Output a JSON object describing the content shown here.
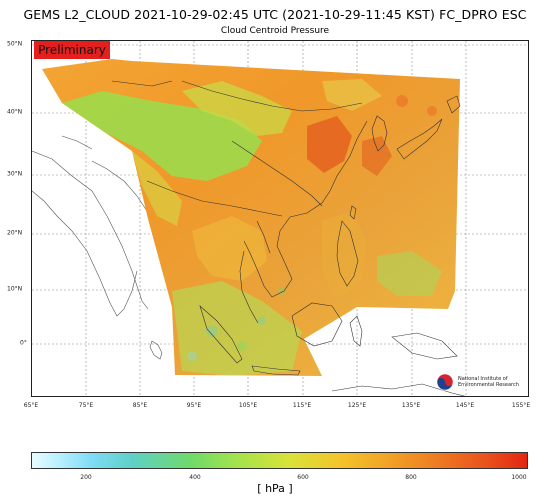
{
  "title": "GEMS L2_CLOUD 2021-10-29-02:45 UTC (2021-10-29-11:45 KST)  FC_DPRO ESC",
  "subtitle": "Cloud Centroid Pressure",
  "badge": "Preliminary",
  "lon_ticks": [
    "65°E",
    "75°E",
    "85°E",
    "95°E",
    "105°E",
    "115°E",
    "125°E",
    "135°E",
    "145°E",
    "155°E"
  ],
  "lat_ticks": [
    "50°N",
    "40°N",
    "30°N",
    "20°N",
    "10°N",
    "0°"
  ],
  "logo": {
    "line1": "National Institute of",
    "line2": "Environmental Research"
  },
  "colorbar": {
    "ticks": [
      "200",
      "400",
      "600",
      "800",
      "1000"
    ],
    "unit": "[ hPa ]",
    "range": [
      100,
      1000
    ],
    "colors": [
      "#e8fbff",
      "#7fdcf5",
      "#6fd96a",
      "#d9e23a",
      "#f2a227",
      "#e9501d",
      "#e3260f"
    ]
  }
}
